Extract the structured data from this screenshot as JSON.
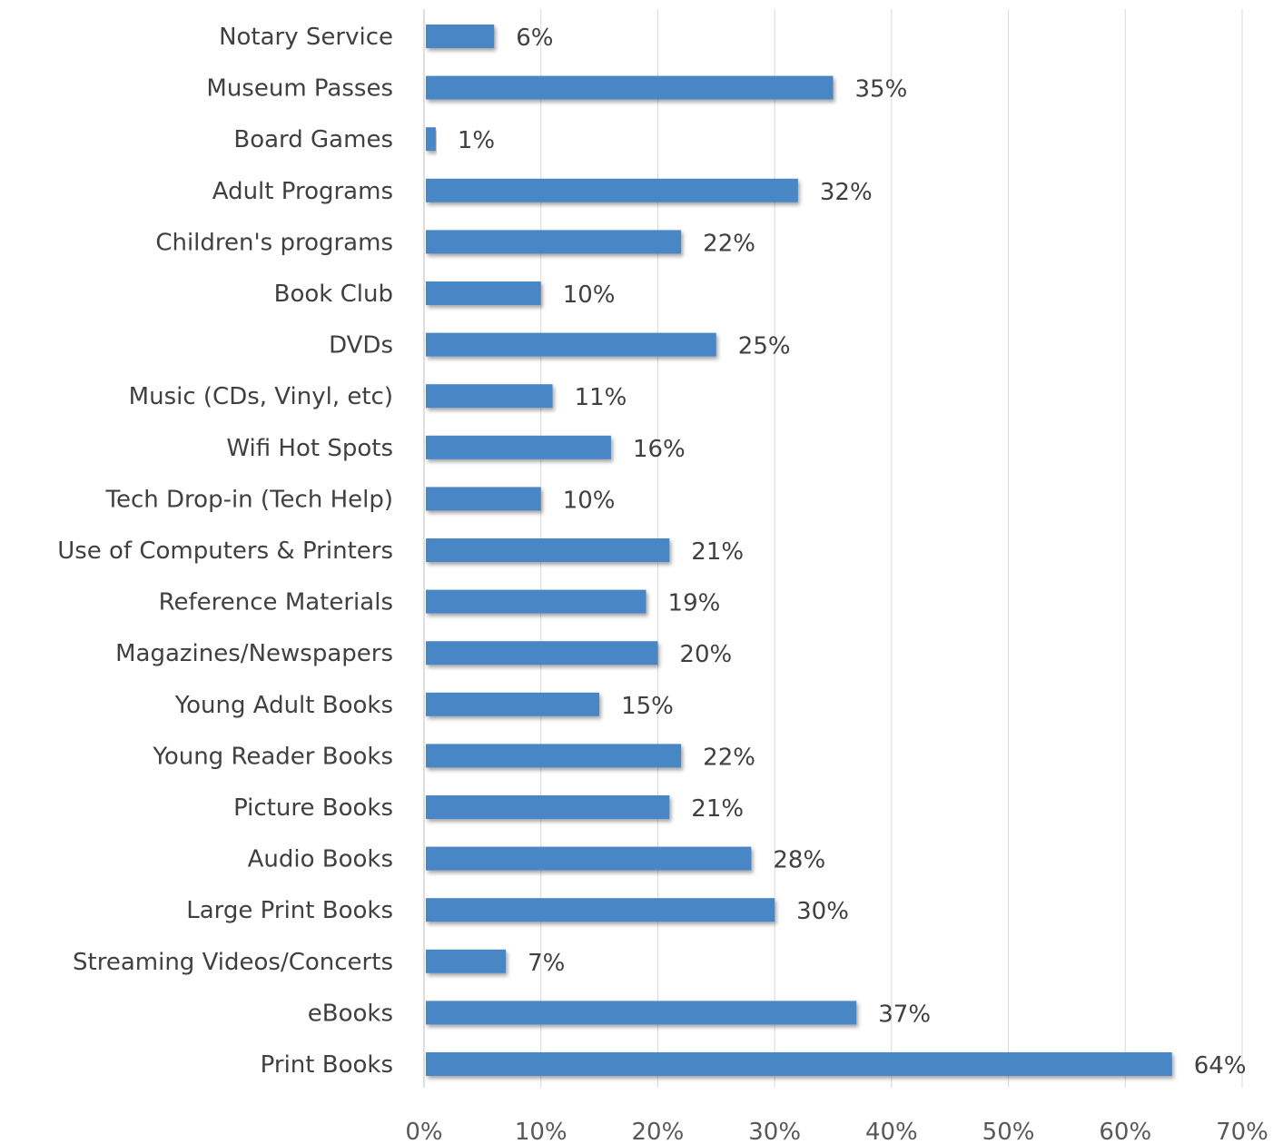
{
  "chart_data": {
    "type": "bar",
    "orientation": "horizontal",
    "title": "",
    "xlabel": "",
    "ylabel": "",
    "categories": [
      "Notary Service",
      "Museum Passes",
      "Board Games",
      "Adult Programs",
      "Children's programs",
      "Book Club",
      "DVDs",
      "Music (CDs, Vinyl, etc)",
      "Wifi Hot Spots",
      "Tech Drop-in (Tech Help)",
      "Use of Computers & Printers",
      "Reference Materials",
      "Magazines/Newspapers",
      "Young Adult Books",
      "Young Reader Books",
      "Picture Books",
      "Audio Books",
      "Large Print Books",
      "Streaming Videos/Concerts",
      "eBooks",
      "Print Books"
    ],
    "values": [
      6,
      35,
      1,
      32,
      22,
      10,
      25,
      11,
      16,
      10,
      21,
      19,
      20,
      15,
      22,
      21,
      28,
      30,
      7,
      37,
      64
    ],
    "value_labels": [
      "6%",
      "35%",
      "1%",
      "32%",
      "22%",
      "10%",
      "25%",
      "11%",
      "16%",
      "10%",
      "21%",
      "19%",
      "20%",
      "15%",
      "22%",
      "21%",
      "28%",
      "30%",
      "7%",
      "37%",
      "64%"
    ],
    "xlim": [
      0,
      70
    ],
    "x_ticks": [
      0,
      10,
      20,
      30,
      40,
      50,
      60,
      70
    ],
    "x_tick_labels": [
      "0%",
      "10%",
      "20%",
      "30%",
      "40%",
      "50%",
      "60%",
      "70%"
    ],
    "grid": "vertical",
    "legend": "none",
    "bar_color": "#4a86c6",
    "text_color": "#404040"
  }
}
